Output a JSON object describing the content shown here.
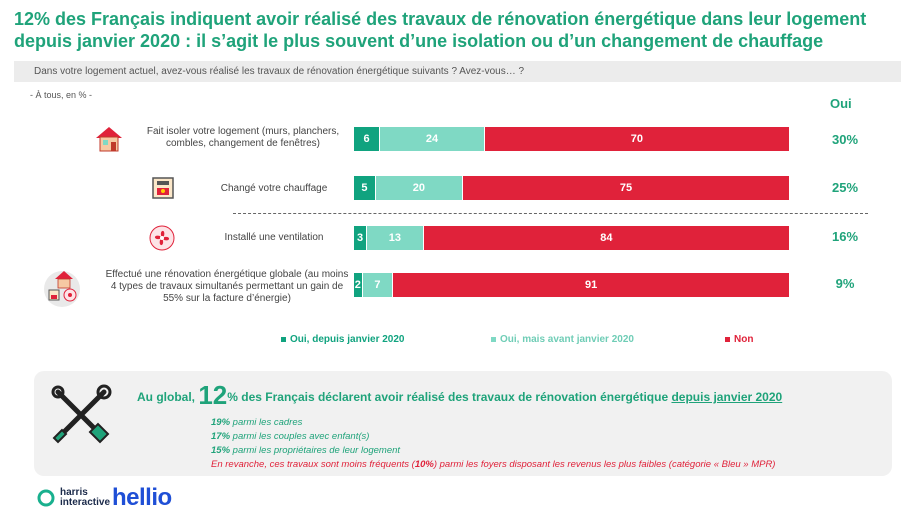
{
  "title": "12% des Français indiquent avoir réalisé des travaux de rénovation énergétique dans leur logement depuis janvier 2020 : il s’agit le plus souvent d’une isolation ou d’un changement de chauffage",
  "question": "Dans votre logement actuel, avez-vous réalisé les travaux de rénovation énergétique suivants ? Avez-vous… ?",
  "base": "- À tous, en % -",
  "oui_header": "Oui",
  "colors": {
    "dark_green": "#10a37f",
    "light_green": "#7fd9c4",
    "red": "#e0223a",
    "text_green": "#1fa37a"
  },
  "chart_data": {
    "type": "bar",
    "orientation": "horizontal",
    "stacked": true,
    "categories": [
      "Fait isoler votre logement (murs, planchers, combles, changement de fenêtres)",
      "Changé votre chauffage",
      "Installé une ventilation",
      "Effectué une rénovation énergétique globale (au moins 4 types de travaux simultanés permettant un gain de 55% sur la facture d’énergie)"
    ],
    "series": [
      {
        "name": "Oui, depuis janvier 2020",
        "values": [
          6,
          5,
          3,
          2
        ]
      },
      {
        "name": "Oui, mais avant janvier 2020",
        "values": [
          24,
          20,
          13,
          7
        ]
      },
      {
        "name": "Non",
        "values": [
          70,
          75,
          84,
          91
        ]
      }
    ],
    "oui_totals": [
      "30%",
      "25%",
      "16%",
      "9%"
    ],
    "xlim": [
      0,
      100
    ]
  },
  "legend": [
    "Oui, depuis janvier 2020",
    "Oui, mais avant janvier 2020",
    "Non"
  ],
  "summary": {
    "prefix": "Au global,",
    "big_number": "12",
    "middle": "% des Français déclarent avoir réalisé des travaux de rénovation énergétique",
    "underlined": "depuis janvier 2020",
    "stats": [
      {
        "value": "19%",
        "text": " parmi les cadres"
      },
      {
        "value": "17%",
        "text": " parmi les couples avec enfant(s)"
      },
      {
        "value": "15%",
        "text": " parmi les propriétaires de leur logement"
      }
    ],
    "contrast_start": "En revanche, ces travaux sont moins fréquents (",
    "contrast_value": "10%",
    "contrast_end": ") parmi les foyers disposant les revenus les plus faibles (catégorie « Bleu » MPR)"
  },
  "logos": {
    "harris_line1": "harris",
    "harris_line2": "interactive",
    "hellio": "hellio"
  }
}
